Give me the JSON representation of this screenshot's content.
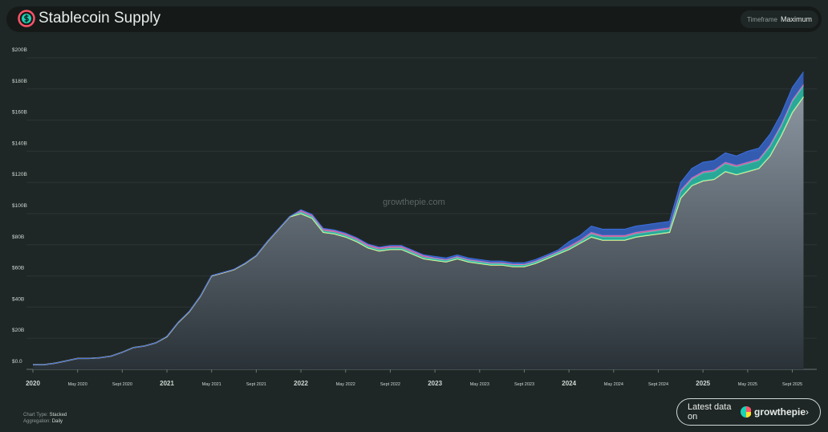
{
  "chart_data": {
    "type": "stacked-area",
    "title": "Stablecoin Supply",
    "x": [
      "2020-01",
      "2020-02",
      "2020-03",
      "2020-04",
      "2020-05",
      "2020-06",
      "2020-07",
      "2020-08",
      "2020-09",
      "2020-10",
      "2020-11",
      "2020-12",
      "2021-01",
      "2021-02",
      "2021-03",
      "2021-04",
      "2021-05",
      "2021-06",
      "2021-07",
      "2021-08",
      "2021-09",
      "2021-10",
      "2021-11",
      "2021-12",
      "2022-01",
      "2022-02",
      "2022-03",
      "2022-04",
      "2022-05",
      "2022-06",
      "2022-07",
      "2022-08",
      "2022-09",
      "2022-10",
      "2022-11",
      "2022-12",
      "2023-01",
      "2023-02",
      "2023-03",
      "2023-04",
      "2023-05",
      "2023-06",
      "2023-07",
      "2023-08",
      "2023-09",
      "2023-10",
      "2023-11",
      "2023-12",
      "2024-01",
      "2024-02",
      "2024-03",
      "2024-04",
      "2024-05",
      "2024-06",
      "2024-07",
      "2024-08",
      "2024-09",
      "2024-10",
      "2024-11",
      "2024-12",
      "2025-01",
      "2025-02",
      "2025-03",
      "2025-04",
      "2025-05",
      "2025-06",
      "2025-07",
      "2025-08",
      "2025-09",
      "2025-10"
    ],
    "series": [
      {
        "color": "#f2f98e",
        "values": [
          3,
          3,
          4,
          5.5,
          7,
          7,
          7.5,
          8.5,
          11,
          14,
          15,
          17,
          21,
          30,
          37,
          47,
          60,
          62,
          64,
          68,
          73,
          82,
          90,
          98,
          100,
          97,
          88,
          87,
          85,
          82,
          78,
          76,
          77,
          77,
          74,
          71,
          70,
          69,
          71,
          69,
          68,
          67,
          67,
          66,
          66,
          68,
          71,
          74,
          77,
          81,
          85,
          83,
          83,
          83,
          85,
          86,
          87,
          88,
          110,
          118,
          121,
          122,
          127,
          125,
          127,
          129,
          137,
          150,
          165,
          175
        ]
      },
      {
        "color": "#2dd4bf",
        "values": [
          0,
          0,
          0,
          0,
          0,
          0,
          0,
          0,
          0,
          0,
          0,
          0,
          0.2,
          0.2,
          0.2,
          0.2,
          0.2,
          0.2,
          0.2,
          0.2,
          0.2,
          0.2,
          0.2,
          0.2,
          1,
          1,
          1,
          1,
          1,
          1,
          1,
          1,
          1,
          1,
          1,
          1,
          1,
          1,
          1,
          1,
          1,
          1,
          1,
          1,
          1,
          1,
          1,
          1,
          1,
          1,
          2,
          2,
          2,
          2,
          2,
          2,
          2,
          2,
          4,
          4,
          5,
          5,
          5,
          5,
          5,
          5,
          6,
          6,
          7,
          7
        ]
      },
      {
        "color": "#f472b6",
        "values": [
          0,
          0,
          0,
          0,
          0,
          0,
          0,
          0,
          0,
          0,
          0,
          0,
          0,
          0,
          0,
          0,
          0,
          0,
          0,
          0,
          0,
          0,
          0,
          0,
          1,
          1,
          1,
          1,
          1,
          1,
          1,
          1,
          1,
          1,
          1,
          1,
          0.5,
          0.5,
          0.5,
          0.5,
          0.5,
          0.5,
          0.5,
          0.5,
          0.5,
          0.5,
          0.5,
          0.5,
          1,
          1,
          1,
          1,
          1,
          1,
          1,
          1,
          1,
          1,
          1,
          1,
          1,
          1,
          1,
          1,
          1,
          1,
          1,
          1,
          1,
          1
        ]
      },
      {
        "color": "#3b6fe0",
        "values": [
          0,
          0,
          0,
          0,
          0,
          0,
          0,
          0,
          0,
          0,
          0,
          0,
          0,
          0,
          0,
          0,
          0,
          0,
          0,
          0,
          0,
          0,
          0,
          0,
          0.5,
          0.5,
          0.5,
          0.5,
          0.5,
          0.5,
          0.5,
          0.5,
          0.5,
          0.5,
          0.5,
          0.5,
          1,
          1,
          1,
          1,
          1,
          1,
          1,
          1,
          1,
          1,
          1,
          1,
          3,
          3,
          4,
          4,
          4,
          4,
          4,
          4,
          4,
          4,
          5,
          6,
          6,
          6,
          6,
          6,
          7,
          7,
          7,
          7,
          8,
          8
        ]
      }
    ],
    "ylim": [
      0,
      200
    ],
    "yticks": [
      {
        "value": 0,
        "label": "$0.0"
      },
      {
        "value": 20,
        "label": "$20B"
      },
      {
        "value": 40,
        "label": "$40B"
      },
      {
        "value": 60,
        "label": "$60B"
      },
      {
        "value": 80,
        "label": "$80B"
      },
      {
        "value": 100,
        "label": "$100B"
      },
      {
        "value": 120,
        "label": "$120B"
      },
      {
        "value": 140,
        "label": "$140B"
      },
      {
        "value": 160,
        "label": "$160B"
      },
      {
        "value": 180,
        "label": "$180B"
      },
      {
        "value": 200,
        "label": "$200B"
      }
    ],
    "xticks": [
      {
        "value": "2020-01",
        "label": "2020"
      },
      {
        "value": "2020-05",
        "label": "May 2020"
      },
      {
        "value": "2020-09",
        "label": "Sept 2020"
      },
      {
        "value": "2021-01",
        "label": "2021"
      },
      {
        "value": "2021-05",
        "label": "May 2021"
      },
      {
        "value": "2021-09",
        "label": "Sept 2021"
      },
      {
        "value": "2022-01",
        "label": "2022"
      },
      {
        "value": "2022-05",
        "label": "May 2022"
      },
      {
        "value": "2022-09",
        "label": "Sept 2022"
      },
      {
        "value": "2023-01",
        "label": "2023"
      },
      {
        "value": "2023-05",
        "label": "May 2023"
      },
      {
        "value": "2023-09",
        "label": "Sept 2023"
      },
      {
        "value": "2024-01",
        "label": "2024"
      },
      {
        "value": "2024-05",
        "label": "May 2024"
      },
      {
        "value": "2024-09",
        "label": "Sept 2024"
      },
      {
        "value": "2025-01",
        "label": "2025"
      },
      {
        "value": "2025-05",
        "label": "May 2025"
      },
      {
        "value": "2025-09",
        "label": "Sept 2025"
      }
    ],
    "grid": true
  },
  "ui": {
    "timeframe_label": "Timeframe",
    "timeframe_value": "Maximum",
    "chart_type_label": "Chart Type:",
    "chart_type_value": "Stacked",
    "aggregation_label": "Aggregation:",
    "aggregation_value": "Daily",
    "watermark": "growthepie.com",
    "latest_label": "Latest data on",
    "brand": "growthepie"
  }
}
